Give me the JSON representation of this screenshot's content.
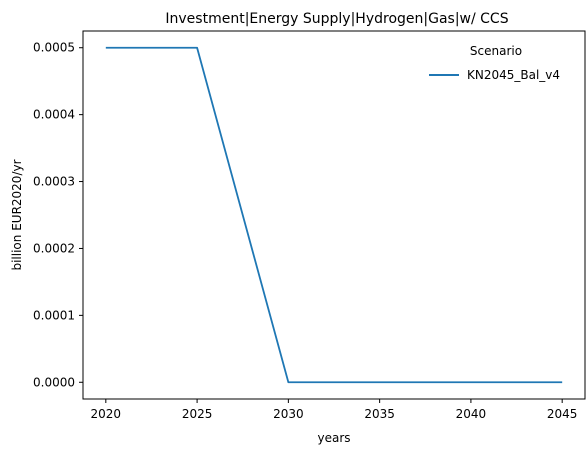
{
  "chart_data": {
    "type": "line",
    "title": "Investment|Energy Supply|Hydrogen|Gas|w/ CCS",
    "xlabel": "years",
    "ylabel": "billion EUR2020/yr",
    "x": [
      2020,
      2025,
      2030,
      2035,
      2040,
      2045
    ],
    "xticks": [
      "2020",
      "2025",
      "2030",
      "2035",
      "2040",
      "2045"
    ],
    "yticks": [
      "0.0000",
      "0.0001",
      "0.0002",
      "0.0003",
      "0.0004",
      "0.0005"
    ],
    "xlim": [
      2018.75,
      2046.25
    ],
    "ylim": [
      -2.5e-05,
      0.000525
    ],
    "grid": false,
    "legend": {
      "title": "Scenario",
      "placement": "top-right"
    },
    "series": [
      {
        "name": "KN2045_Bal_v4",
        "color": "#1f77b4",
        "values": [
          0.0005,
          0.0005,
          0.0,
          0.0,
          0.0,
          0.0
        ]
      }
    ]
  }
}
